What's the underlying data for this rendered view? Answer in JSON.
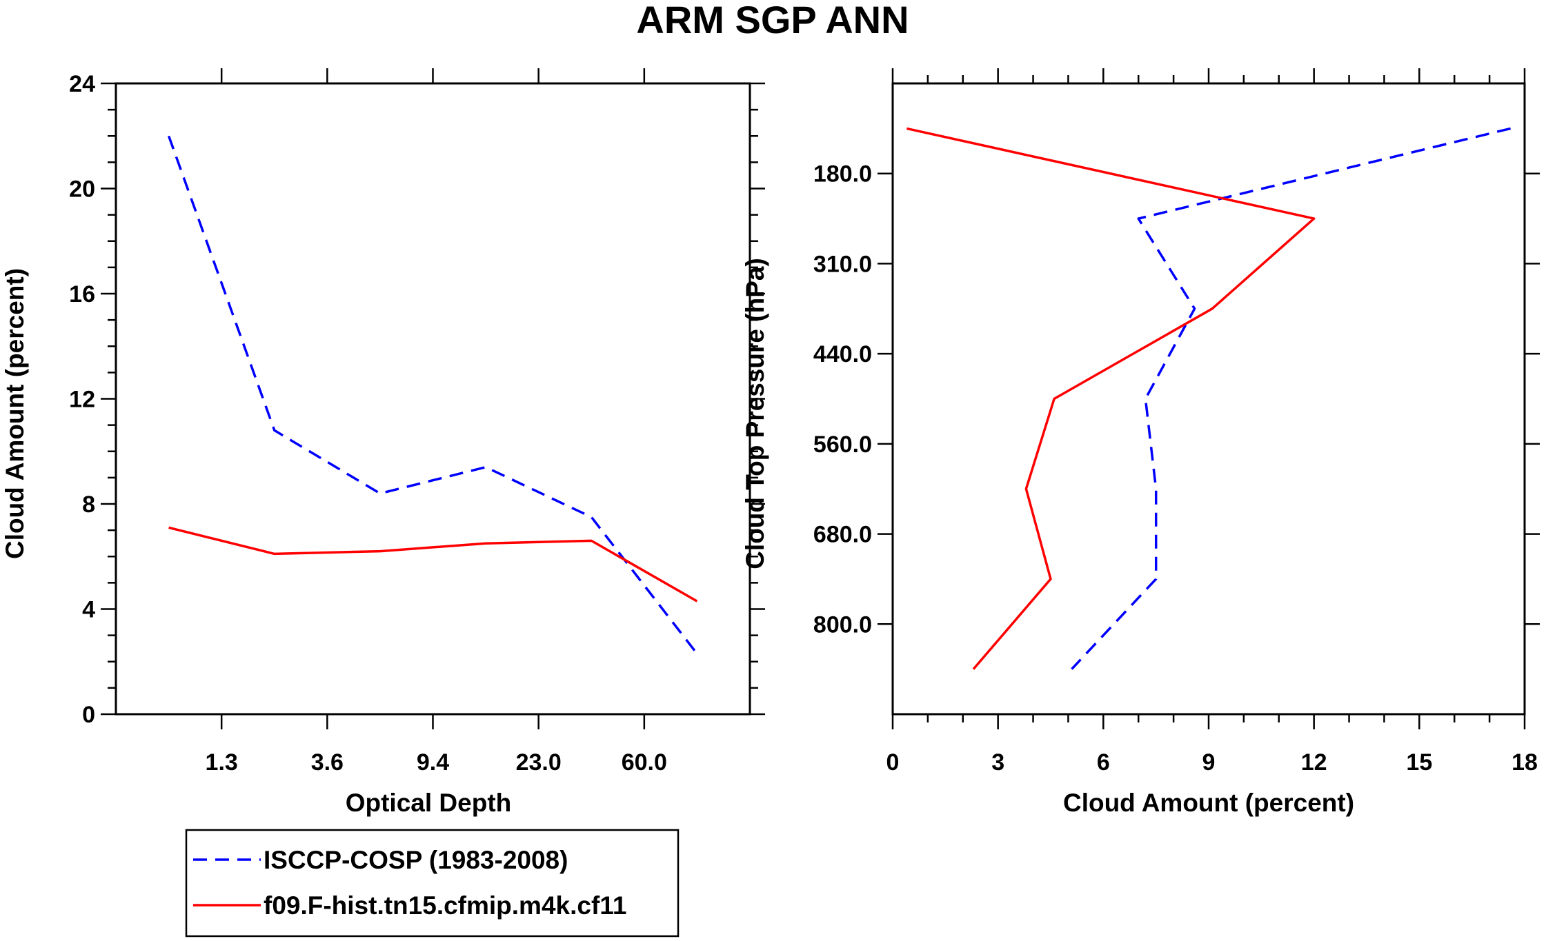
{
  "title": "ARM SGP ANN",
  "chart_data": [
    {
      "type": "line",
      "id": "optical-depth",
      "xlabel": "Optical Depth",
      "ylabel": "Cloud Amount (percent)",
      "ylim": [
        0,
        24
      ],
      "yticks": [
        "0",
        "4",
        "8",
        "12",
        "16",
        "20",
        "24"
      ],
      "x_bins": 6,
      "xticks": [
        "1.3",
        "3.6",
        "9.4",
        "23.0",
        "60.0"
      ],
      "series": [
        {
          "name": "ISCCP-COSP (1983-2008)",
          "color": "#0000ff",
          "dash": true,
          "values": [
            22.0,
            10.8,
            8.4,
            9.4,
            7.5,
            2.3
          ]
        },
        {
          "name": "f09.F-hist.tn15.cfmip.m4k.cf11",
          "color": "#ff0000",
          "dash": false,
          "values": [
            7.1,
            6.1,
            6.2,
            6.5,
            6.6,
            4.3
          ]
        }
      ]
    },
    {
      "type": "line",
      "id": "cloud-top-pressure",
      "xlabel": "Cloud Amount (percent)",
      "ylabel": "Cloud Top Pressure (hPa)",
      "xlim": [
        0,
        18
      ],
      "xticks": [
        "0",
        "3",
        "6",
        "9",
        "12",
        "15",
        "18"
      ],
      "y_levels": 7,
      "yticks": [
        "180.0",
        "310.0",
        "440.0",
        "560.0",
        "680.0",
        "800.0"
      ],
      "series": [
        {
          "name": "ISCCP-COSP (1983-2008)",
          "color": "#0000ff",
          "dash": true,
          "values": [
            17.6,
            7.0,
            8.6,
            7.2,
            7.5,
            7.5,
            5.1
          ]
        },
        {
          "name": "f09.F-hist.tn15.cfmip.m4k.cf11",
          "color": "#ff0000",
          "dash": false,
          "values": [
            0.4,
            12.0,
            9.1,
            4.6,
            3.8,
            4.5,
            2.3
          ]
        }
      ]
    }
  ],
  "legend": [
    {
      "label": "ISCCP-COSP (1983-2008)",
      "color": "#0000ff",
      "dash": true
    },
    {
      "label": "f09.F-hist.tn15.cfmip.m4k.cf11",
      "color": "#ff0000",
      "dash": false
    }
  ]
}
